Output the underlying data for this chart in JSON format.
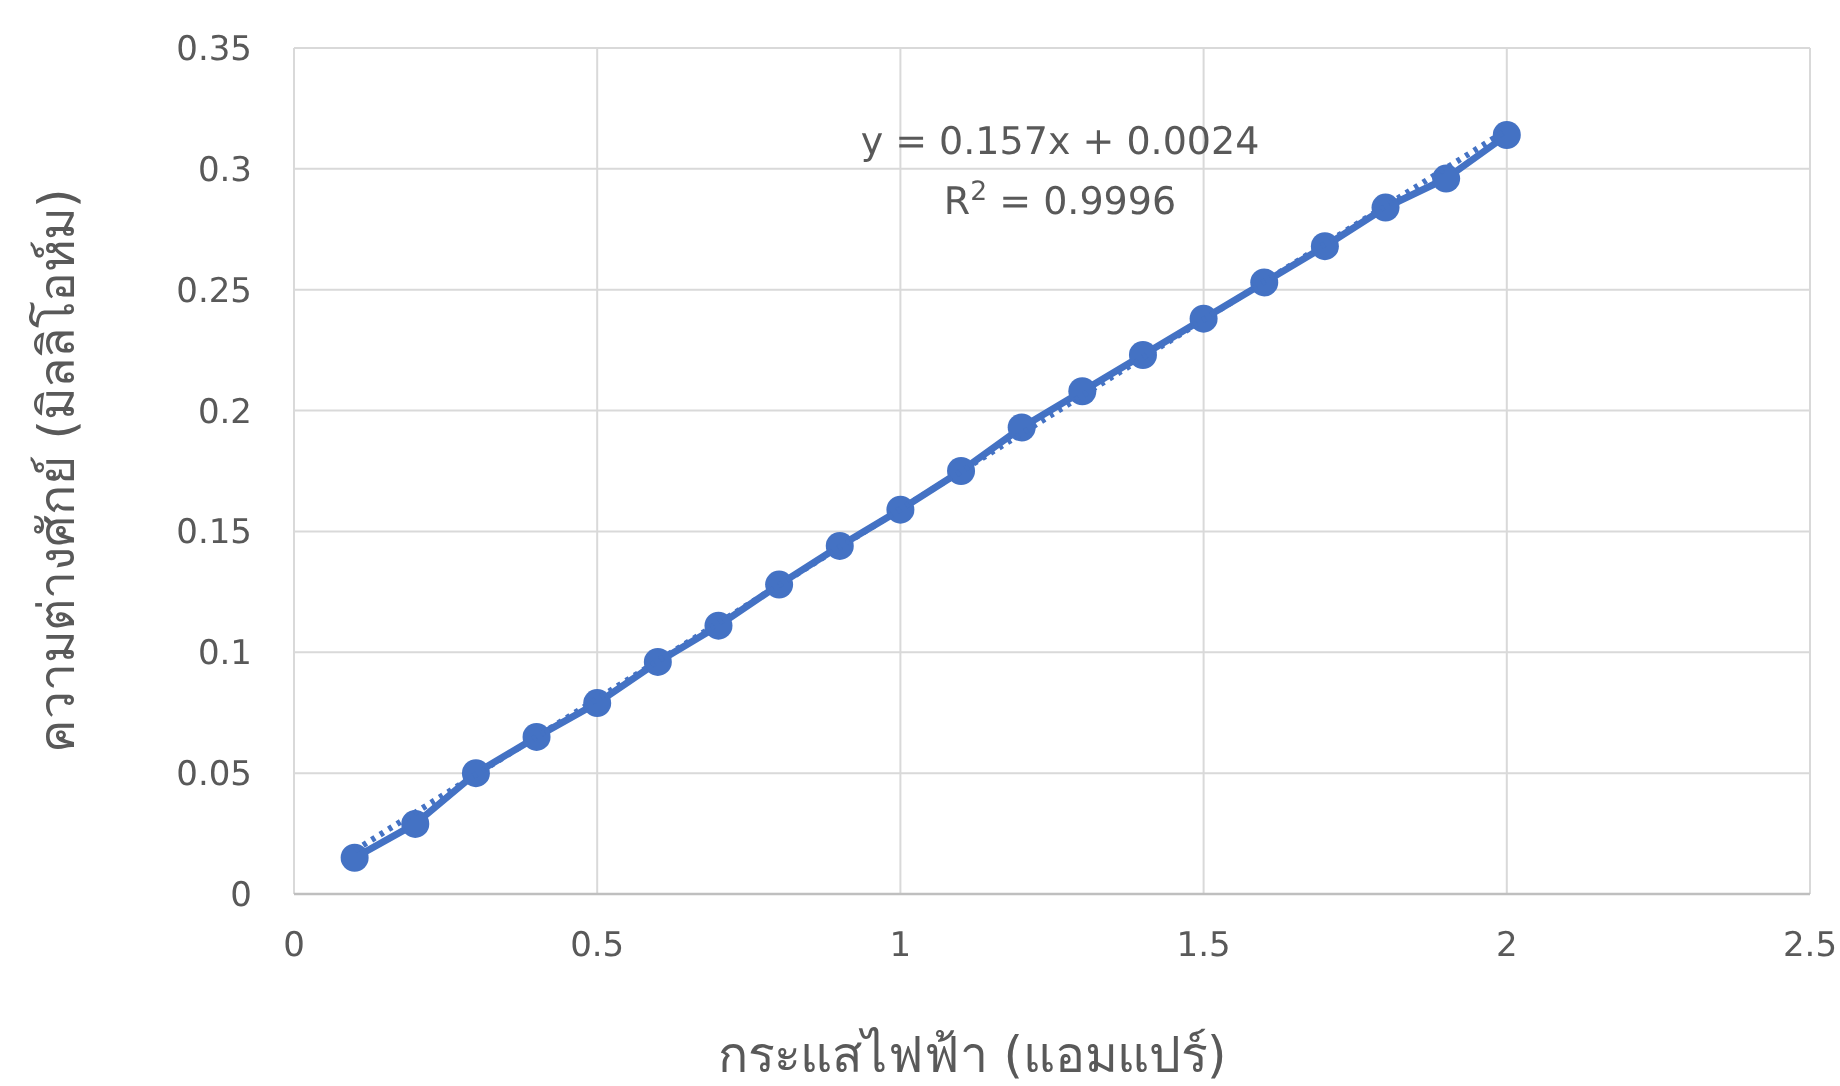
{
  "chart_data": {
    "type": "line",
    "xlabel": "กระแสไฟฟ้า (แอมแปร์)",
    "ylabel": "ความต่างศักย์ (มิลลิโอห์ม)",
    "x": [
      0.1,
      0.2,
      0.3,
      0.4,
      0.5,
      0.6,
      0.7,
      0.8,
      0.9,
      1.0,
      1.1,
      1.2,
      1.3,
      1.4,
      1.5,
      1.6,
      1.7,
      1.8,
      1.9,
      2.0
    ],
    "series": [
      {
        "color": "#4472c4",
        "marker": "circle",
        "line_style": "solid",
        "values": [
          0.015,
          0.029,
          0.05,
          0.065,
          0.079,
          0.096,
          0.111,
          0.128,
          0.144,
          0.159,
          0.175,
          0.193,
          0.208,
          0.223,
          0.238,
          0.253,
          0.268,
          0.284,
          0.296,
          0.314
        ]
      },
      {
        "color": "#4472c4",
        "marker": "none",
        "line_style": "dotted",
        "x": [
          0.1,
          2.0
        ],
        "values": [
          0.018,
          0.316
        ]
      }
    ],
    "annotations": [
      "y = 0.157x + 0.0024",
      "R$^{2}$ = 0.9996"
    ],
    "xlim": [
      0,
      2.5
    ],
    "xticks": [
      0,
      0.5,
      1,
      1.5,
      2,
      2.5
    ],
    "ylim": [
      0,
      0.35
    ],
    "yticks": [
      0,
      0.05,
      0.1,
      0.15,
      0.2,
      0.25,
      0.3,
      0.35
    ],
    "grid": true
  }
}
